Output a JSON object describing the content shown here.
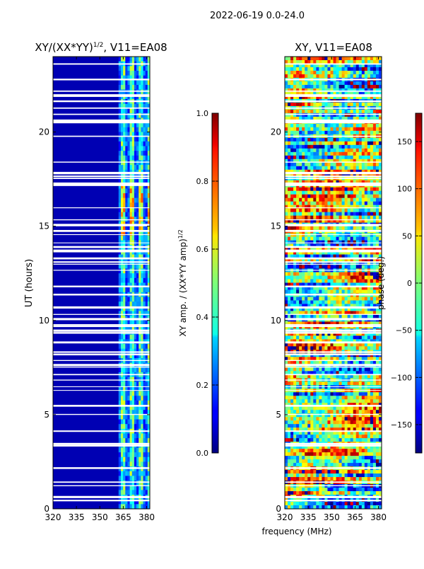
{
  "figure": {
    "suptitle": "2022-06-19 0.0-24.0",
    "shared_xlabel": "frequency (MHz)"
  },
  "chart_data": [
    {
      "type": "heatmap",
      "title_prefix": "XY/(XX*YY)",
      "title_exponent": "1/2",
      "title_suffix": ", V11=EA08",
      "ylabel": "UT (hours)",
      "xlabel": "frequency (MHz)",
      "xlim": [
        320,
        382
      ],
      "ylim": [
        0,
        24
      ],
      "x_ticks": [
        320,
        335,
        350,
        365,
        380
      ],
      "y_ticks": [
        0,
        5,
        10,
        15,
        20
      ],
      "colorbar": {
        "label_prefix": "XY amp. / (XX*YY amp)",
        "label_exponent": "1/2",
        "range": [
          0.0,
          1.0
        ],
        "ticks": [
          "0.0",
          "0.2",
          "0.4",
          "0.6",
          "0.8",
          "1.0"
        ],
        "colormap": "jet"
      },
      "active_band_mhz": [
        362,
        382
      ],
      "typical_value_background": 0.05,
      "typical_value_band": 0.35
    },
    {
      "type": "heatmap",
      "title": "XY, V11=EA08",
      "ylabel": "",
      "xlabel": "frequency (MHz)",
      "xlim": [
        320,
        382
      ],
      "ylim": [
        0,
        24
      ],
      "x_ticks": [
        320,
        335,
        350,
        365,
        380
      ],
      "y_ticks": [
        0,
        5,
        10,
        15,
        20
      ],
      "colorbar": {
        "label": "phase (deg.)",
        "range": [
          -180,
          180
        ],
        "ticks": [
          "-150",
          "-100",
          "-50",
          "0",
          "50",
          "100",
          "150"
        ],
        "colormap": "jet"
      }
    }
  ]
}
